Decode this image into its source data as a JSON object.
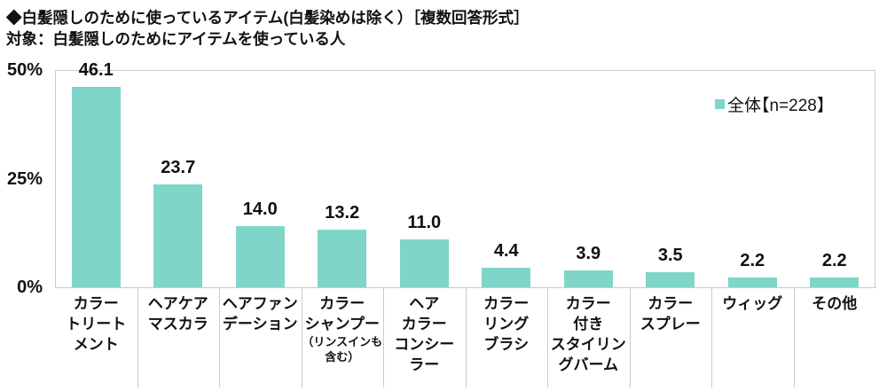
{
  "header": {
    "title": "◆白髪隠しのために使っているアイテム(白髪染めは除く）［複数回答形式］",
    "subtitle": "対象：白髪隠しのためにアイテムを使っている人"
  },
  "legend": {
    "label": "全体【n=228】",
    "color": "#7fd5c8"
  },
  "chart_data": {
    "type": "bar",
    "title": "白髪隠しのために使っているアイテム(白髪染めは除く)",
    "categories": [
      {
        "lines": [
          "カラー",
          "トリート",
          "メント"
        ]
      },
      {
        "lines": [
          "ヘアケア",
          "マスカラ"
        ]
      },
      {
        "lines": [
          "ヘアファン",
          "デーション"
        ]
      },
      {
        "lines": [
          "カラー",
          "シャンプー"
        ],
        "sub": [
          "（リンスインも",
          "含む）"
        ]
      },
      {
        "lines": [
          "ヘア",
          "カラー",
          "コンシー",
          "ラー"
        ]
      },
      {
        "lines": [
          "カラー",
          "リング",
          "ブラシ"
        ]
      },
      {
        "lines": [
          "カラー",
          "付き",
          "スタイリン",
          "グバーム"
        ]
      },
      {
        "lines": [
          "カラー",
          "スプレー"
        ]
      },
      {
        "lines": [
          "ウィッグ"
        ]
      },
      {
        "lines": [
          "その他"
        ]
      }
    ],
    "values": [
      46.1,
      23.7,
      14.0,
      13.2,
      11.0,
      4.4,
      3.9,
      3.5,
      2.2,
      2.2
    ],
    "value_labels": [
      "46.1",
      "23.7",
      "14.0",
      "13.2",
      "11.0",
      "4.4",
      "3.9",
      "3.5",
      "2.2",
      "2.2"
    ],
    "series": [
      {
        "name": "全体【n=228】",
        "values": [
          46.1,
          23.7,
          14.0,
          13.2,
          11.0,
          4.4,
          3.9,
          3.5,
          2.2,
          2.2
        ]
      }
    ],
    "yticks": [
      "50%",
      "25%",
      "0%"
    ],
    "ylim": [
      0,
      50
    ],
    "bar_color": "#7fd5c8",
    "grid": false,
    "legend_position": "top-right"
  }
}
